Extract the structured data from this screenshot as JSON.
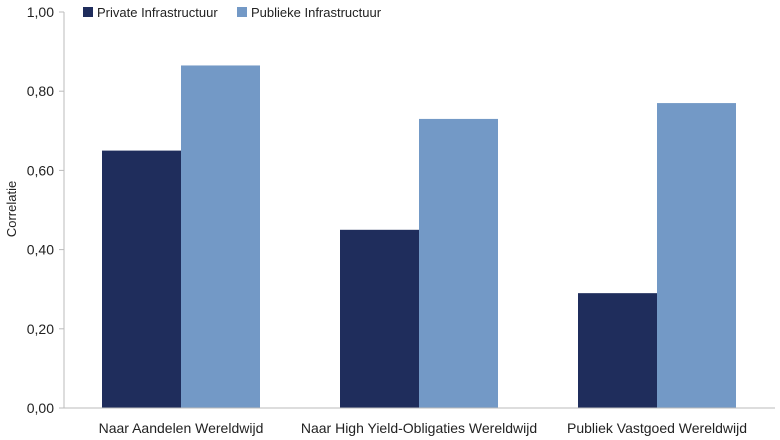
{
  "chart_data": {
    "type": "bar",
    "categories": [
      "Naar Aandelen Wereldwijd",
      "Naar High Yield-Obligaties Wereldwijd",
      "Publiek Vastgoed Wereldwijd"
    ],
    "series": [
      {
        "name": "Private Infrastructuur",
        "values": [
          0.65,
          0.45,
          0.29
        ],
        "color": "#1f2d5c"
      },
      {
        "name": "Publieke Infrastructuur",
        "values": [
          0.865,
          0.73,
          0.77
        ],
        "color": "#7399c6"
      }
    ],
    "ylabel": "Correlatie",
    "ylim": [
      0,
      1
    ],
    "yticks": [
      "0,00",
      "0,20",
      "0,40",
      "0,60",
      "0,80",
      "1,00"
    ],
    "grid": false,
    "legend": "top-left"
  }
}
